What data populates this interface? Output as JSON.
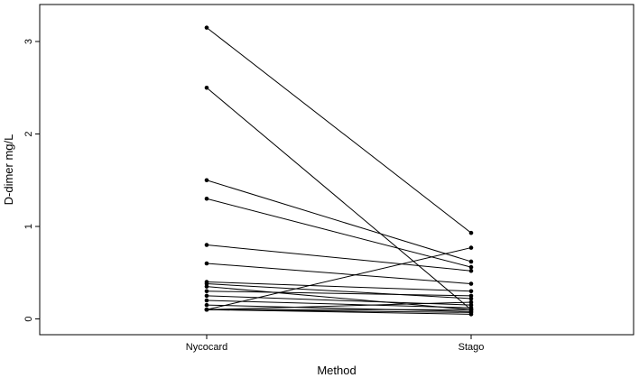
{
  "chart_data": {
    "type": "line",
    "xlabel": "Method",
    "ylabel": "D-dimer mg/L",
    "categories": [
      "Nycocard",
      "Stago"
    ],
    "yticks": [
      0,
      1,
      2,
      3
    ],
    "ylim": [
      -0.1,
      3.3
    ],
    "grid": false,
    "legend": "none",
    "series": [
      {
        "values": [
          3.15,
          0.93
        ]
      },
      {
        "values": [
          2.5,
          0.1
        ]
      },
      {
        "values": [
          1.5,
          0.62
        ]
      },
      {
        "values": [
          1.3,
          0.56
        ]
      },
      {
        "values": [
          0.8,
          0.52
        ]
      },
      {
        "values": [
          0.6,
          0.38
        ]
      },
      {
        "values": [
          0.4,
          0.3
        ]
      },
      {
        "values": [
          0.38,
          0.22
        ]
      },
      {
        "values": [
          0.35,
          0.1
        ]
      },
      {
        "values": [
          0.3,
          0.25
        ]
      },
      {
        "values": [
          0.25,
          0.15
        ]
      },
      {
        "values": [
          0.2,
          0.12
        ]
      },
      {
        "values": [
          0.15,
          0.08
        ]
      },
      {
        "values": [
          0.1,
          0.77
        ]
      },
      {
        "values": [
          0.1,
          0.18
        ]
      },
      {
        "values": [
          0.1,
          0.1
        ]
      },
      {
        "values": [
          0.1,
          0.07
        ]
      },
      {
        "values": [
          0.1,
          0.05
        ]
      }
    ]
  }
}
